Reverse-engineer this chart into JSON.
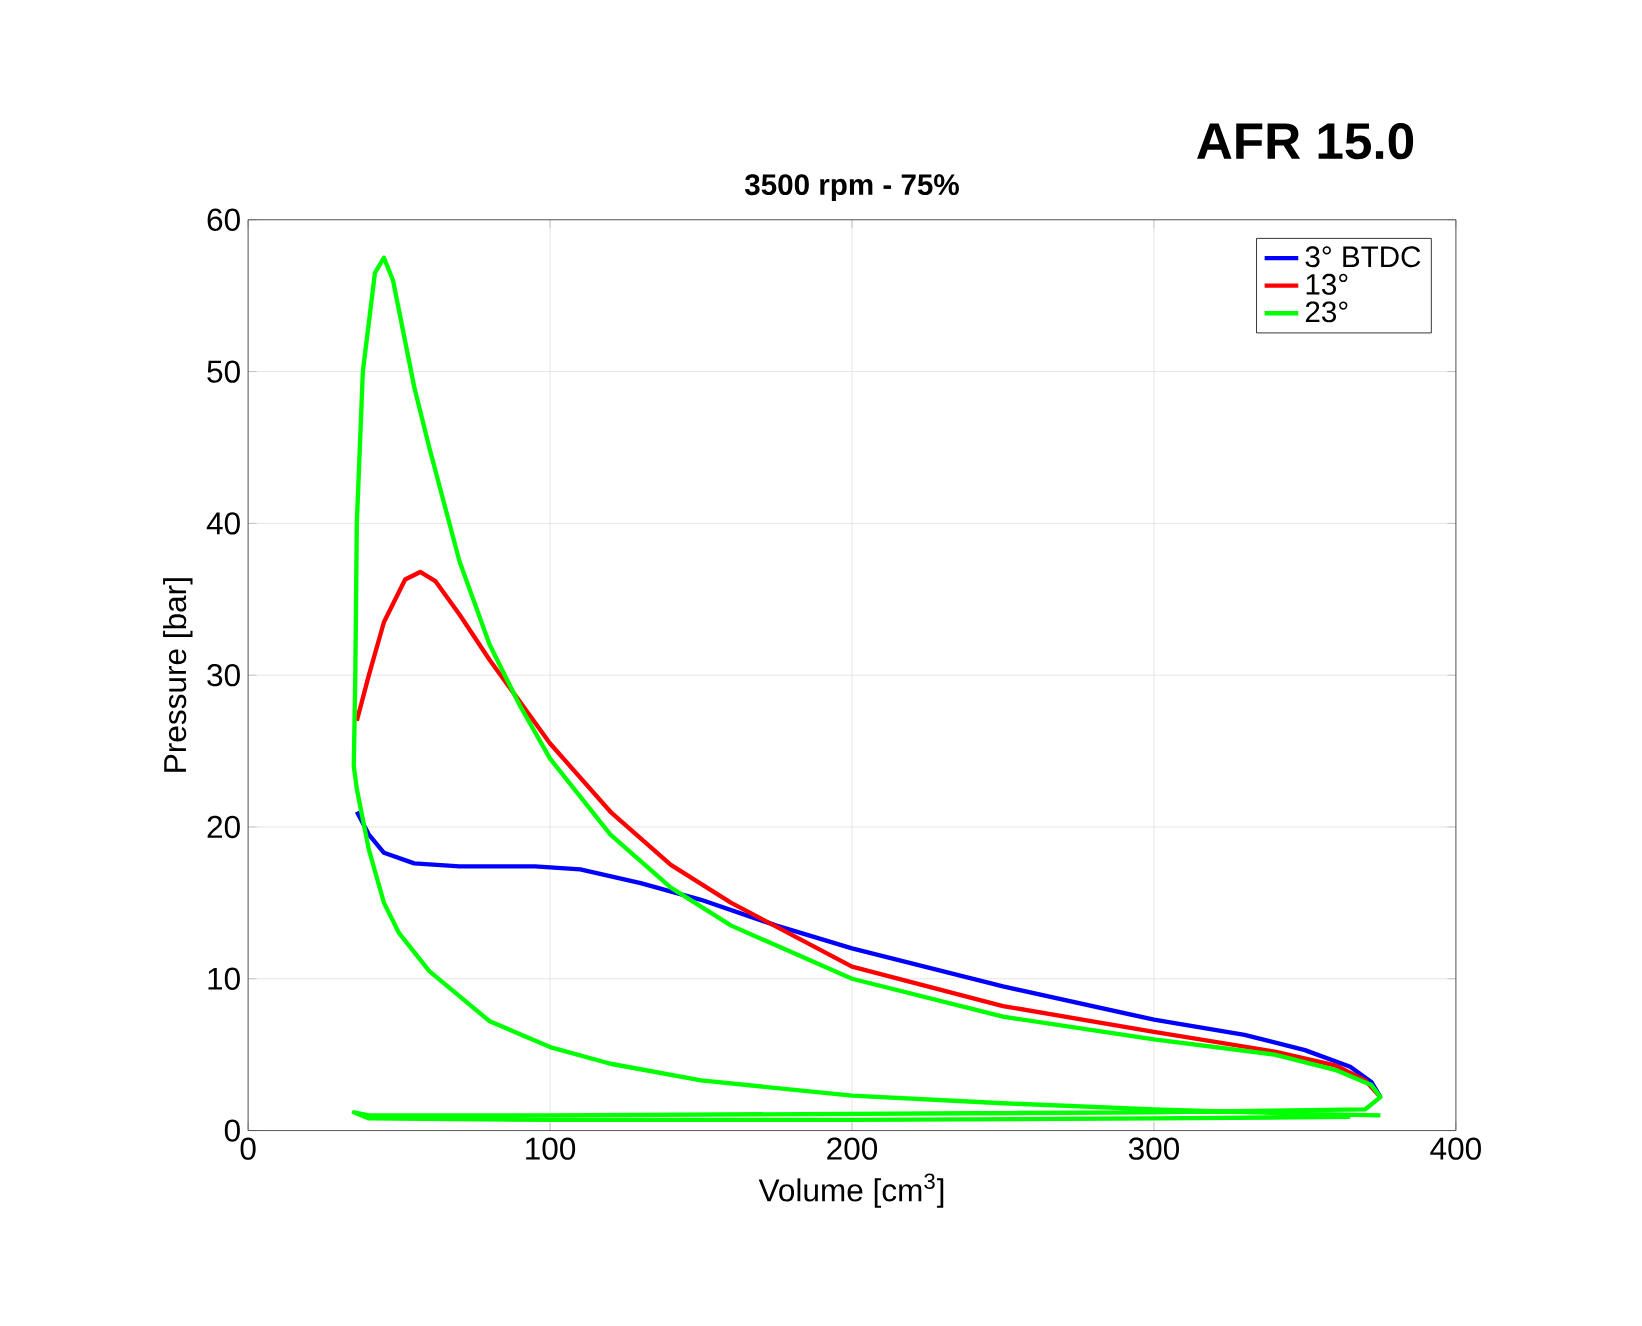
{
  "chart_data": {
    "type": "line",
    "title": "3500 rpm - 75%",
    "annotations": [
      "AFR 15.0"
    ],
    "xlabel": "Volume [cm$^{3}$]",
    "ylabel": "Pressure [bar]",
    "xlim": [
      0,
      400
    ],
    "xticks": [
      0,
      100,
      200,
      300,
      400
    ],
    "ylim": [
      0,
      60
    ],
    "yticks": [
      0,
      10,
      20,
      30,
      40,
      50,
      60
    ],
    "grid": true,
    "legend": "top right",
    "marker": "none",
    "line_style": "solid",
    "series": [
      {
        "name": "3° BTDC",
        "color": "#0000ff",
        "x": [
          36,
          40,
          45,
          55,
          70,
          95,
          110,
          130,
          150,
          175,
          200,
          250,
          300,
          330,
          350,
          365,
          372,
          375
        ],
        "values": [
          21,
          19.5,
          18.3,
          17.6,
          17.4,
          17.4,
          17.2,
          16.3,
          15.2,
          13.5,
          12,
          9.5,
          7.3,
          6.3,
          5.3,
          4.2,
          3.2,
          2.2
        ]
      },
      {
        "name": "13°",
        "color": "#ff0000",
        "x": [
          36,
          40,
          45,
          52,
          57,
          62,
          70,
          80,
          100,
          120,
          140,
          160,
          200,
          250,
          300,
          340,
          360,
          370,
          375
        ],
        "values": [
          27,
          30,
          33.5,
          36.3,
          36.8,
          36.2,
          34,
          31,
          25.5,
          21,
          17.5,
          15,
          10.8,
          8.2,
          6.5,
          5.2,
          4.3,
          3.3,
          2.2
        ]
      },
      {
        "name": "23°",
        "color": "#00ff00",
        "x": [
          375,
          350,
          300,
          250,
          200,
          150,
          120,
          100,
          80,
          60,
          50,
          45,
          40,
          36,
          35,
          35.5,
          36,
          38,
          42,
          45,
          48,
          55,
          60,
          70,
          80,
          90,
          100,
          120,
          140,
          160,
          200,
          250,
          300,
          340,
          360,
          372,
          375,
          370,
          300,
          100,
          40,
          35,
          40,
          100,
          200,
          300,
          365
        ],
        "values": [
          1.0,
          1.1,
          1.4,
          1.8,
          2.3,
          3.3,
          4.4,
          5.5,
          7.2,
          10.5,
          13,
          15,
          18.5,
          22.5,
          24,
          30,
          40,
          50,
          56.5,
          57.5,
          56,
          49,
          45,
          37.5,
          32,
          28,
          24.5,
          19.5,
          16,
          13.5,
          10,
          7.5,
          6,
          5,
          4,
          3,
          2.2,
          1.4,
          1.2,
          1.0,
          1.0,
          1.2,
          0.8,
          0.7,
          0.7,
          0.8,
          0.9
        ]
      }
    ]
  }
}
